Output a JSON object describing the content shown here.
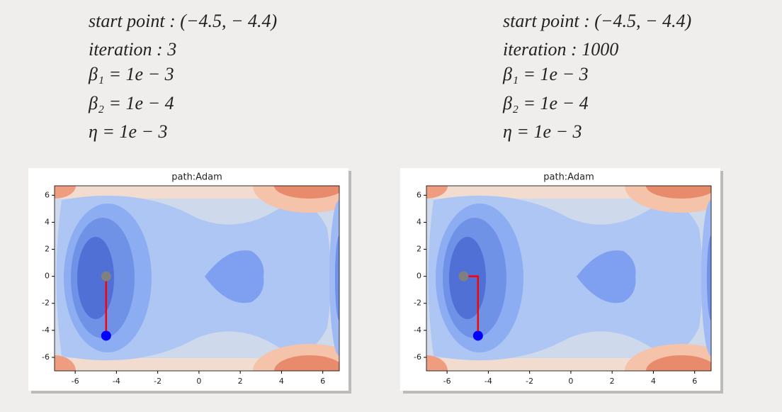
{
  "captions": [
    [
      "start point : (−4.5, − 4.4)",
      "iteration : 3",
      "β₁ = 1e − 3",
      "β₂ = 1e − 4",
      "η = 1e − 3"
    ],
    [
      "start point : (−4.5, − 4.4)",
      "iteration : 1000",
      "β₁ = 1e − 3",
      "β₂ = 1e − 4",
      "η = 1e − 3"
    ]
  ],
  "chart_data": [
    {
      "type": "path",
      "title": "path:Adam",
      "x": [
        -4.5,
        -4.5
      ],
      "y": [
        -4.4,
        0
      ],
      "xlim": [
        -7,
        6.8
      ],
      "ylim": [
        -7,
        6.7
      ],
      "xticks": [
        -6,
        -4,
        -2,
        0,
        2,
        4,
        6
      ],
      "yticks": [
        -6,
        -4,
        -2,
        0,
        2,
        4,
        6
      ],
      "line_color": "#ff0000",
      "start_color": "#0000ff",
      "end_color": "#808080"
    },
    {
      "type": "path",
      "title": "path:Adam",
      "x": [
        -4.5,
        -4.5,
        -5.2
      ],
      "y": [
        -4.4,
        0,
        0
      ],
      "xlim": [
        -7,
        6.8
      ],
      "ylim": [
        -7,
        6.7
      ],
      "xticks": [
        -6,
        -4,
        -2,
        0,
        2,
        4,
        6
      ],
      "yticks": [
        -6,
        -4,
        -2,
        0,
        2,
        4,
        6
      ],
      "line_color": "#ff0000",
      "start_color": "#0000ff",
      "end_color": "#808080"
    }
  ]
}
